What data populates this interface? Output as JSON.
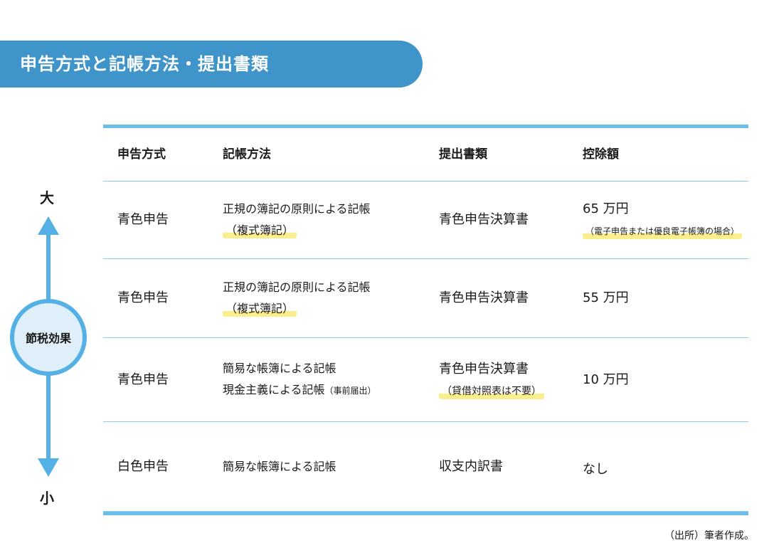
{
  "title": "申告方式と記帳方法・提出書類",
  "axis": {
    "top": "大",
    "bottom": "小",
    "center": "節税効果"
  },
  "headers": [
    "申告方式",
    "記帳方法",
    "提出書類",
    "控除額"
  ],
  "rows": [
    {
      "method": "青色申告",
      "book1": "正規の簿記の原則による記帳",
      "book2": "（複式簿記）",
      "doc": "青色申告決算書",
      "doc_note": "",
      "deduction": "65 万円",
      "deduction_note": "（電子申告または優良電子帳簿の場合）"
    },
    {
      "method": "青色申告",
      "book1": "正規の簿記の原則による記帳",
      "book2": "（複式簿記）",
      "doc": "青色申告決算書",
      "doc_note": "",
      "deduction": "55 万円",
      "deduction_note": ""
    },
    {
      "method": "青色申告",
      "book1": "簡易な帳簿による記帳",
      "book2": "現金主義による記帳",
      "book2_note": "（事前届出）",
      "doc": "青色申告決算書",
      "doc_note": "（貸借対照表は不要）",
      "deduction": "10 万円",
      "deduction_note": ""
    },
    {
      "method": "白色申告",
      "book1": "簡易な帳簿による記帳",
      "doc": "収支内訳書",
      "deduction": "なし"
    }
  ],
  "source": "（出所）筆者作成。",
  "colors": {
    "banner": "#3f95c9",
    "rule": "#6cbdea",
    "arrow": "#55b0e6",
    "highlight": "#fbee8c"
  }
}
